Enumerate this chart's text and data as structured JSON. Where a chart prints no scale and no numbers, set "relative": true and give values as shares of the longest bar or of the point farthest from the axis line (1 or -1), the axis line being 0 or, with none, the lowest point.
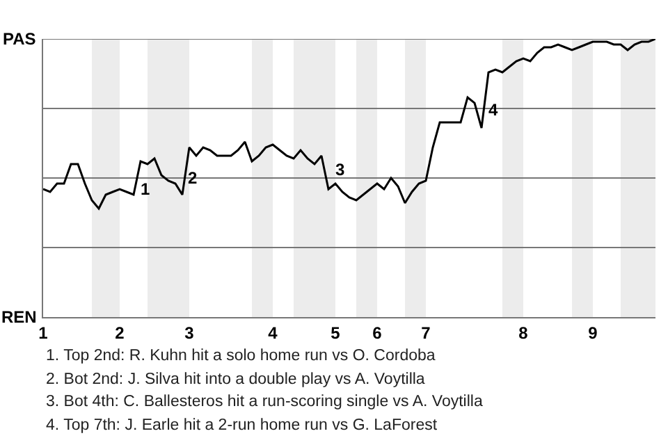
{
  "chart_data": {
    "type": "line",
    "color": "#000000",
    "relative": true,
    "categories": [
      "1",
      null,
      null,
      null,
      null,
      null,
      null,
      null,
      null,
      null,
      null,
      "2",
      null,
      null,
      null,
      null,
      null,
      null,
      null,
      null,
      null,
      "3",
      null,
      null,
      null,
      null,
      null,
      null,
      null,
      null,
      null,
      null,
      null,
      "4",
      null,
      null,
      null,
      null,
      null,
      null,
      null,
      null,
      "5",
      null,
      null,
      null,
      null,
      null,
      "6",
      null,
      null,
      null,
      null,
      null,
      null,
      "7",
      null,
      null,
      null,
      null,
      null,
      null,
      null,
      null,
      null,
      null,
      null,
      null,
      null,
      "8",
      null,
      null,
      null,
      null,
      null,
      null,
      null,
      null,
      null,
      "9",
      null,
      null,
      null,
      null,
      null,
      null,
      null,
      null,
      null
    ],
    "values": [
      0.46,
      0.45,
      0.48,
      0.48,
      0.55,
      0.55,
      0.48,
      0.42,
      0.39,
      0.44,
      0.45,
      0.46,
      0.45,
      0.44,
      0.56,
      0.55,
      0.57,
      0.51,
      0.49,
      0.48,
      0.44,
      0.61,
      0.58,
      0.61,
      0.6,
      0.58,
      0.58,
      0.58,
      0.6,
      0.63,
      0.56,
      0.58,
      0.61,
      0.62,
      0.6,
      0.58,
      0.57,
      0.6,
      0.57,
      0.55,
      0.58,
      0.46,
      0.48,
      0.45,
      0.43,
      0.42,
      0.44,
      0.46,
      0.48,
      0.46,
      0.5,
      0.47,
      0.41,
      0.45,
      0.48,
      0.49,
      0.61,
      0.7,
      0.7,
      0.7,
      0.7,
      0.79,
      0.77,
      0.68,
      0.88,
      0.89,
      0.88,
      0.9,
      0.92,
      0.93,
      0.92,
      0.95,
      0.97,
      0.97,
      0.98,
      0.97,
      0.96,
      0.97,
      0.98,
      0.99,
      0.99,
      0.99,
      0.98,
      0.98,
      0.96,
      0.98,
      0.99,
      0.99,
      1.0
    ],
    "grid": "y",
    "annotations": [
      "PAS",
      "REN",
      "1",
      "2",
      "3",
      "4",
      "1. Top 2nd: R. Kuhn hit a solo home run vs O. Cordoba",
      "2. Bot 2nd: J. Silva hit into a double play vs A. Voytilla",
      "3. Bot 4th: C. Ballesteros hit a run-scoring single vs A. Voytilla",
      "4. Top 7th: J. Earle hit a 2-run home run vs G. LaForest"
    ]
  }
}
